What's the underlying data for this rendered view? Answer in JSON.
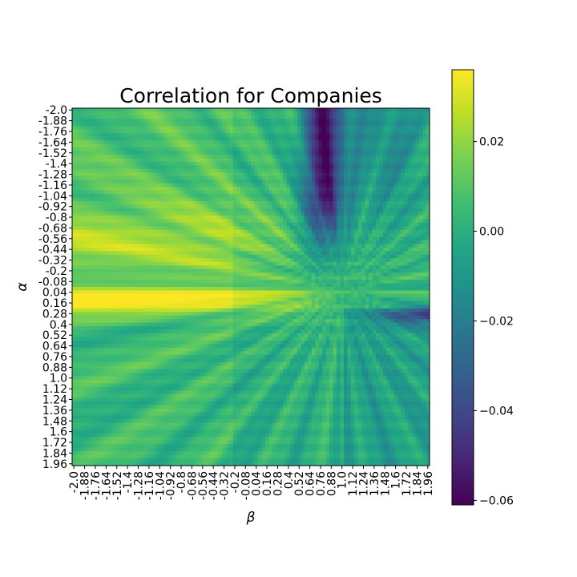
{
  "chart_data": {
    "type": "heatmap",
    "title": "Correlation for Companies",
    "xlabel": "β",
    "ylabel": "α",
    "x_range": [
      -2.0,
      1.96
    ],
    "y_range": [
      -2.0,
      1.96
    ],
    "grid_step": 0.04,
    "x_tick_labels": [
      "-2.0",
      "-1.88",
      "-1.76",
      "-1.64",
      "-1.52",
      "-1.4",
      "-1.28",
      "-1.16",
      "-1.04",
      "-0.92",
      "-0.8",
      "-0.68",
      "-0.56",
      "-0.44",
      "-0.32",
      "-0.2",
      "-0.08",
      "0.04",
      "0.16",
      "0.28",
      "0.4",
      "0.52",
      "0.64",
      "0.76",
      "0.88",
      "1.0",
      "1.12",
      "1.24",
      "1.36",
      "1.48",
      "1.6",
      "1.72",
      "1.84",
      "1.96"
    ],
    "y_tick_labels": [
      "-2.0",
      "-1.88",
      "-1.76",
      "-1.64",
      "-1.52",
      "-1.4",
      "-1.28",
      "-1.16",
      "-1.04",
      "-0.92",
      "-0.8",
      "-0.68",
      "-0.56",
      "-0.44",
      "-0.32",
      "-0.2",
      "-0.08",
      "0.04",
      "0.16",
      "0.28",
      "0.4",
      "0.52",
      "0.64",
      "0.76",
      "0.88",
      "1.0",
      "1.12",
      "1.24",
      "1.36",
      "1.48",
      "1.6",
      "1.72",
      "1.84",
      "1.96"
    ],
    "colorbar": {
      "colormap": "viridis",
      "vmin": -0.061,
      "vmax": 0.036,
      "ticks": [
        -0.06,
        -0.04,
        -0.02,
        0.0,
        0.02
      ],
      "tick_labels": [
        "−0.06",
        "−0.04",
        "−0.02",
        "0.00",
        "0.02"
      ]
    },
    "cells_summary": "Values range from about −0.06 to 0.035. High correlation (≈0.03) in a horizontal band at α≈0.0–0.28 for negative β, radiating rays converging at β≈1.0, α≈0.0. Lowest values (≈−0.055) for α≈−2.0 to −1.0 and β≈0.6–0.95; negative band toward α≈0.3 near β≈1.96."
  }
}
